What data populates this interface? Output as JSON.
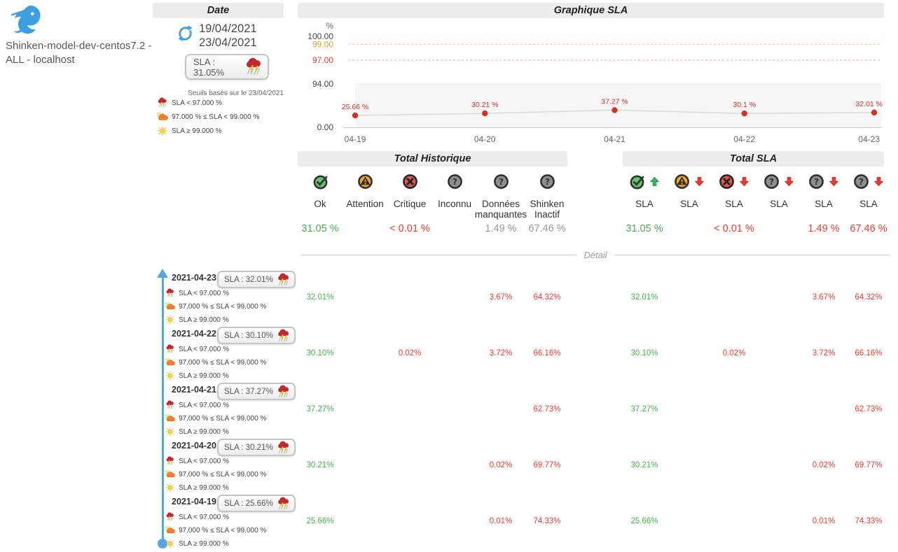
{
  "colors": {
    "green": "#4aad4e",
    "red": "#e73c34",
    "gray": "#9a9a9a",
    "orange": "#f29b1d",
    "blue": "#4aa2dc"
  },
  "host": {
    "name": "Shinken-model-dev-centos7.2 - ALL - localhost"
  },
  "date_panel": {
    "title": "Date",
    "date_from": "19/04/2021",
    "date_to": "23/04/2021",
    "sla_badge": {
      "label": "SLA : 31.05%",
      "icon": "storm-icon"
    },
    "thresholds_note": "Seuils basés sur le 23/04/2021",
    "thresholds": [
      {
        "icon": "storm-icon",
        "label": "SLA < 97.000 %"
      },
      {
        "icon": "cloudy-icon",
        "label": "97.000 % ≤ SLA < 99.000 %"
      },
      {
        "icon": "sun-icon",
        "label": "SLA ≥ 99.000 %"
      }
    ]
  },
  "chart_data": {
    "type": "line",
    "title": "Graphique SLA",
    "ylabel": "%",
    "x": [
      "04-19",
      "04-20",
      "04-21",
      "04-22",
      "04-23"
    ],
    "series": [
      {
        "name": "SLA",
        "values": [
          25.66,
          30.21,
          37.27,
          30.1,
          32.01
        ]
      }
    ],
    "point_labels": [
      "25.66 %",
      "30.21 %",
      "37.27 %",
      "30.1 %",
      "32.01 %"
    ],
    "yticks": [
      {
        "value": 100,
        "label": "100.00",
        "color": "#444444"
      },
      {
        "value": 99,
        "label": "99.00",
        "color": "#f29b1d"
      },
      {
        "value": 97,
        "label": "97.00",
        "color": "#e73c34"
      },
      {
        "value": 94,
        "label": "94.00",
        "color": "#444444"
      },
      {
        "value": 0,
        "label": "0.00",
        "color": "#444444"
      }
    ],
    "thresholds": {
      "warning": 99,
      "critical": 97
    },
    "band_top": 94,
    "ylim": [
      0,
      100
    ],
    "grid": false,
    "legend": false
  },
  "totals_historique": {
    "title": "Total Historique",
    "columns": [
      {
        "icon": "ok-icon",
        "label": "Ok",
        "value": "31.05 %",
        "color": "green"
      },
      {
        "icon": "warning-icon",
        "label": "Attention",
        "value": "",
        "color": ""
      },
      {
        "icon": "critical-icon",
        "label": "Critique",
        "value": "< 0.01 %",
        "color": "red"
      },
      {
        "icon": "unknown-icon",
        "label": "Inconnu",
        "value": "",
        "color": ""
      },
      {
        "icon": "unknown-icon",
        "label": "Données manquantes",
        "value": "1.49 %",
        "color": "gray"
      },
      {
        "icon": "unknown-icon",
        "label": "Shinken Inactif",
        "value": "67.46 %",
        "color": "gray"
      }
    ]
  },
  "totals_sla": {
    "title": "Total SLA",
    "columns": [
      {
        "icon": "ok-icon",
        "trend": "up",
        "label": "SLA",
        "value": "31.05 %",
        "color": "green"
      },
      {
        "icon": "warning-icon",
        "trend": "down",
        "label": "SLA",
        "value": "",
        "color": ""
      },
      {
        "icon": "critical-icon",
        "trend": "down",
        "label": "SLA",
        "value": "< 0.01 %",
        "color": "red"
      },
      {
        "icon": "unknown-icon",
        "trend": "down",
        "label": "SLA",
        "value": "",
        "color": ""
      },
      {
        "icon": "unknown-icon",
        "trend": "down",
        "label": "SLA",
        "value": "1.49 %",
        "color": "red"
      },
      {
        "icon": "unknown-icon",
        "trend": "down",
        "label": "SLA",
        "value": "67.46 %",
        "color": "red"
      }
    ]
  },
  "detail": {
    "divider_label": "Détail",
    "thresholds": [
      {
        "icon": "storm-icon",
        "label": "SLA < 97.000 %"
      },
      {
        "icon": "cloudy-icon",
        "label": "97.000 % ≤ SLA < 99.000 %"
      },
      {
        "icon": "sun-icon",
        "label": "SLA ≥ 99.000 %"
      }
    ],
    "rows": [
      {
        "date": "2021-04-23",
        "sla_badge": {
          "label": "SLA : 32.01%",
          "icon": "storm-icon"
        },
        "historique": [
          {
            "value": "32.01%",
            "color": "green"
          },
          null,
          null,
          null,
          {
            "value": "3.67%",
            "color": "red"
          },
          {
            "value": "64.32%",
            "color": "red"
          }
        ],
        "sla": [
          {
            "value": "32.01%",
            "color": "green"
          },
          null,
          null,
          null,
          {
            "value": "3.67%",
            "color": "red"
          },
          {
            "value": "64.32%",
            "color": "red"
          }
        ]
      },
      {
        "date": "2021-04-22",
        "sla_badge": {
          "label": "SLA : 30.10%",
          "icon": "storm-icon"
        },
        "historique": [
          {
            "value": "30.10%",
            "color": "green"
          },
          null,
          {
            "value": "0.02%",
            "color": "red"
          },
          null,
          {
            "value": "3.72%",
            "color": "red"
          },
          {
            "value": "66.16%",
            "color": "red"
          }
        ],
        "sla": [
          {
            "value": "30.10%",
            "color": "green"
          },
          null,
          {
            "value": "0.02%",
            "color": "red"
          },
          null,
          {
            "value": "3.72%",
            "color": "red"
          },
          {
            "value": "66.16%",
            "color": "red"
          }
        ]
      },
      {
        "date": "2021-04-21",
        "sla_badge": {
          "label": "SLA : 37.27%",
          "icon": "storm-icon"
        },
        "historique": [
          {
            "value": "37.27%",
            "color": "green"
          },
          null,
          null,
          null,
          null,
          {
            "value": "62.73%",
            "color": "red"
          }
        ],
        "sla": [
          {
            "value": "37.27%",
            "color": "green"
          },
          null,
          null,
          null,
          null,
          {
            "value": "62.73%",
            "color": "red"
          }
        ]
      },
      {
        "date": "2021-04-20",
        "sla_badge": {
          "label": "SLA : 30.21%",
          "icon": "storm-icon"
        },
        "historique": [
          {
            "value": "30.21%",
            "color": "green"
          },
          null,
          null,
          null,
          {
            "value": "0.02%",
            "color": "red"
          },
          {
            "value": "69.77%",
            "color": "red"
          }
        ],
        "sla": [
          {
            "value": "30.21%",
            "color": "green"
          },
          null,
          null,
          null,
          {
            "value": "0.02%",
            "color": "red"
          },
          {
            "value": "69.77%",
            "color": "red"
          }
        ]
      },
      {
        "date": "2021-04-19",
        "sla_badge": {
          "label": "SLA : 25.66%",
          "icon": "storm-icon"
        },
        "historique": [
          {
            "value": "25.66%",
            "color": "green"
          },
          null,
          null,
          null,
          {
            "value": "0.01%",
            "color": "red"
          },
          {
            "value": "74.33%",
            "color": "red"
          }
        ],
        "sla": [
          {
            "value": "25.66%",
            "color": "green"
          },
          null,
          null,
          null,
          {
            "value": "0.01%",
            "color": "red"
          },
          {
            "value": "74.33%",
            "color": "red"
          }
        ]
      }
    ]
  }
}
